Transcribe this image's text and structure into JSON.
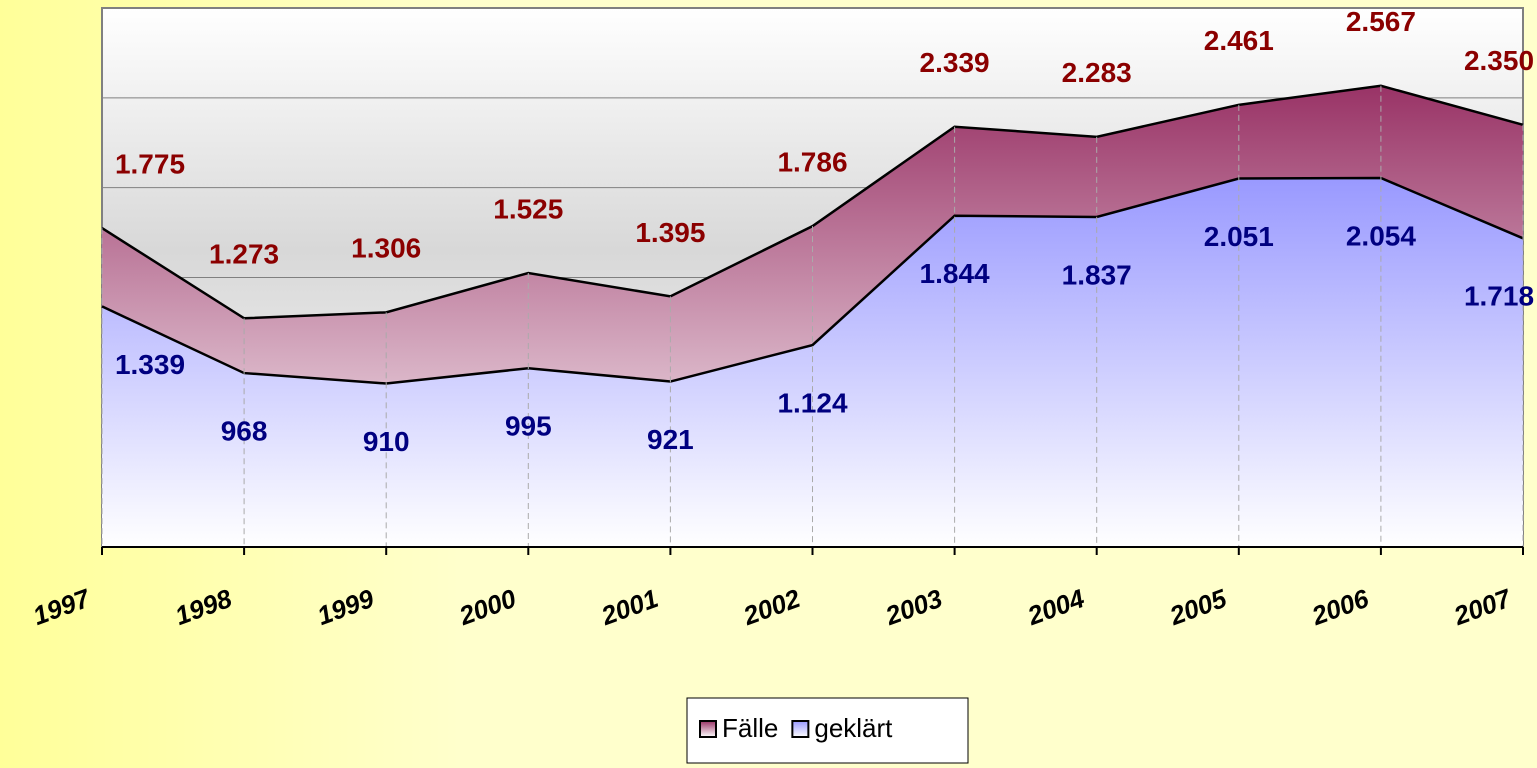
{
  "chart_data": {
    "type": "area",
    "categories": [
      "1997",
      "1998",
      "1999",
      "2000",
      "2001",
      "2002",
      "2003",
      "2004",
      "2005",
      "2006",
      "2007"
    ],
    "series": [
      {
        "name": "Fälle",
        "color": "#993366",
        "values": [
          1775,
          1273,
          1306,
          1525,
          1395,
          1786,
          2339,
          2283,
          2461,
          2567,
          2350
        ],
        "value_labels": [
          "1.775",
          "1.273",
          "1.306",
          "1.525",
          "1.395",
          "1.786",
          "2.339",
          "2.283",
          "2.461",
          "2.567",
          "2.350"
        ],
        "label_color": "#8b0000"
      },
      {
        "name": "geklärt",
        "color": "#9999ff",
        "values": [
          1339,
          968,
          910,
          995,
          921,
          1124,
          1844,
          1837,
          2051,
          2054,
          1718
        ],
        "value_labels": [
          "1.339",
          "968",
          "910",
          "995",
          "921",
          "1.124",
          "1.844",
          "1.837",
          "2.051",
          "2.054",
          "1.718"
        ],
        "label_color": "#000080"
      }
    ],
    "ylim": [
      0,
      3000
    ],
    "yticks": [
      0,
      500,
      1000,
      1500,
      2000,
      2500,
      3000
    ],
    "grid": true,
    "legend": "bottom"
  }
}
